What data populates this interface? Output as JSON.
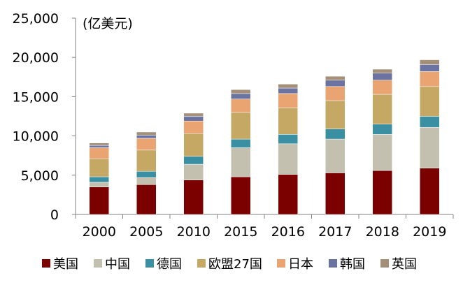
{
  "chart_data": {
    "type": "bar",
    "stacked": true,
    "unit_label": "(亿美元)",
    "categories": [
      "2000",
      "2005",
      "2010",
      "2015",
      "2016",
      "2017",
      "2018",
      "2019"
    ],
    "ylim": [
      0,
      25000
    ],
    "yticks": [
      0,
      5000,
      10000,
      15000,
      20000,
      25000
    ],
    "ytick_labels": [
      "0",
      "5,000",
      "10,000",
      "15,000",
      "20,000",
      "25,000"
    ],
    "legend_position": "bottom",
    "series": [
      {
        "name": "美国",
        "color": "#7B0000",
        "values": [
          3500,
          3800,
          4400,
          4800,
          5100,
          5300,
          5600,
          5900
        ]
      },
      {
        "name": "中国",
        "color": "#C3C0B0",
        "values": [
          600,
          900,
          2000,
          3700,
          3900,
          4300,
          4600,
          5200
        ]
      },
      {
        "name": "德国",
        "color": "#3B8FA3",
        "values": [
          700,
          800,
          1000,
          1100,
          1200,
          1300,
          1300,
          1400
        ]
      },
      {
        "name": "欧盟27国",
        "color": "#C5A863",
        "values": [
          2300,
          2700,
          2900,
          3400,
          3400,
          3600,
          3800,
          3800
        ]
      },
      {
        "name": "日本",
        "color": "#E9A472",
        "values": [
          1400,
          1500,
          1600,
          1700,
          1800,
          1800,
          1800,
          1900
        ]
      },
      {
        "name": "韩国",
        "color": "#6B74A0",
        "values": [
          300,
          400,
          600,
          700,
          700,
          800,
          900,
          900
        ]
      },
      {
        "name": "英国",
        "color": "#A48F78",
        "values": [
          300,
          400,
          400,
          500,
          500,
          500,
          500,
          600
        ]
      }
    ]
  }
}
